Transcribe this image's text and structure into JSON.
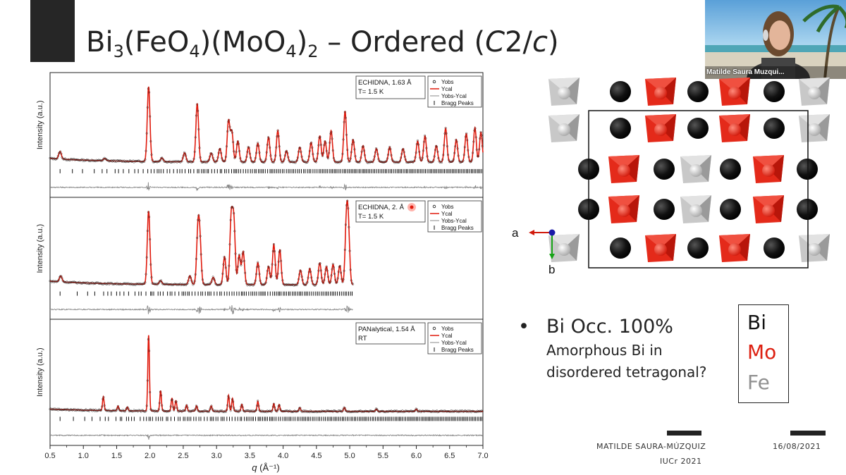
{
  "slide": {
    "title": {
      "prefix": "Bi",
      "sub1": "3",
      "mid1": "(FeO",
      "sub2": "4",
      "mid2": ")(MoO",
      "sub3": "4",
      "mid3": ")",
      "sub4": "2",
      "suffix": " – Ordered (",
      "italic_c": "C",
      "mid4": "2/",
      "italic_c2": "c",
      "end": ")"
    },
    "bullet": {
      "main": "Bi Occ. 100%",
      "sub_line1": "Amorphous Bi in",
      "sub_line2": "disordered tetragonal?"
    },
    "element_legend": [
      {
        "label": "Bi",
        "color": "#111111"
      },
      {
        "label": "Mo",
        "color": "#dd2011"
      },
      {
        "label": "Fe",
        "color": "#909090"
      }
    ],
    "footer": {
      "author": "MATILDE SAURA-MÚZQUIZ",
      "conference": "IUCr 2021",
      "date": "16/08/2021"
    },
    "axes_labels": {
      "a": "a",
      "b": "b"
    }
  },
  "video": {
    "participant_name": "Matilde Saura Muzqui..."
  },
  "chart_data": {
    "type": "line",
    "xlabel": "q (Å⁻¹)",
    "xlabel_q": "q",
    "xlabel_unit": "(Å⁻¹)",
    "xlim": [
      0.5,
      7.0
    ],
    "x_ticks": [
      "0.5",
      "1.0",
      "1.5",
      "2.0",
      "2.5",
      "3.0",
      "3.5",
      "4.0",
      "4.5",
      "5.0",
      "5.5",
      "6.0",
      "6.5",
      "7.0"
    ],
    "panels": [
      {
        "ylabel": "Intensity (a.u.)",
        "info_line1": "ECHIDNA, 1.63 Å",
        "info_line2": "T= 1.5 K",
        "legend": [
          "Yobs",
          "Ycal",
          "Yobs-Ycal",
          "Bragg Peaks"
        ],
        "q_max": 7.0,
        "peaks": [
          [
            0.65,
            0.1
          ],
          [
            1.32,
            0.03
          ],
          [
            1.98,
            1.0
          ],
          [
            2.18,
            0.05
          ],
          [
            2.52,
            0.12
          ],
          [
            2.71,
            0.78
          ],
          [
            2.92,
            0.12
          ],
          [
            3.05,
            0.18
          ],
          [
            3.18,
            0.55
          ],
          [
            3.23,
            0.4
          ],
          [
            3.32,
            0.28
          ],
          [
            3.48,
            0.2
          ],
          [
            3.62,
            0.25
          ],
          [
            3.78,
            0.33
          ],
          [
            3.92,
            0.42
          ],
          [
            4.05,
            0.15
          ],
          [
            4.25,
            0.2
          ],
          [
            4.42,
            0.26
          ],
          [
            4.55,
            0.35
          ],
          [
            4.63,
            0.28
          ],
          [
            4.72,
            0.42
          ],
          [
            4.93,
            0.68
          ],
          [
            5.05,
            0.3
          ],
          [
            5.2,
            0.22
          ],
          [
            5.4,
            0.18
          ],
          [
            5.6,
            0.2
          ],
          [
            5.8,
            0.18
          ],
          [
            6.02,
            0.28
          ],
          [
            6.13,
            0.35
          ],
          [
            6.3,
            0.22
          ],
          [
            6.44,
            0.45
          ],
          [
            6.6,
            0.3
          ],
          [
            6.75,
            0.38
          ],
          [
            6.88,
            0.46
          ],
          [
            6.97,
            0.4
          ]
        ]
      },
      {
        "ylabel": "Intensity (a.u.)",
        "info_line1": "ECHIDNA, 2.",
        "info_line1_end": "Å",
        "info_line2": "T= 1.5 K",
        "legend": [
          "Yobs",
          "Ycal",
          "Yobs-Ycal",
          "Bragg Peaks"
        ],
        "q_max": 5.05,
        "peaks": [
          [
            0.66,
            0.08
          ],
          [
            1.98,
            1.0
          ],
          [
            2.16,
            0.05
          ],
          [
            2.6,
            0.12
          ],
          [
            2.72,
            0.7
          ],
          [
            2.75,
            0.55
          ],
          [
            2.95,
            0.1
          ],
          [
            3.12,
            0.38
          ],
          [
            3.22,
            0.9
          ],
          [
            3.26,
            0.85
          ],
          [
            3.34,
            0.4
          ],
          [
            3.4,
            0.45
          ],
          [
            3.62,
            0.3
          ],
          [
            3.78,
            0.25
          ],
          [
            3.86,
            0.55
          ],
          [
            3.95,
            0.48
          ],
          [
            4.26,
            0.2
          ],
          [
            4.4,
            0.22
          ],
          [
            4.55,
            0.3
          ],
          [
            4.65,
            0.25
          ],
          [
            4.75,
            0.28
          ],
          [
            4.85,
            0.26
          ],
          [
            4.95,
            0.82
          ],
          [
            4.98,
            0.7
          ]
        ]
      },
      {
        "ylabel": "Intensity (a.u.)",
        "info_line1": "PANalytical, 1.54 Å",
        "info_line2": "RT",
        "legend": [
          "Yobs",
          "Ycal",
          "Yobs-Ycal",
          "Bragg Peaks"
        ],
        "q_max": 7.0,
        "peaks": [
          [
            1.3,
            0.18
          ],
          [
            1.52,
            0.06
          ],
          [
            1.66,
            0.05
          ],
          [
            1.98,
            1.0
          ],
          [
            2.16,
            0.27
          ],
          [
            2.33,
            0.17
          ],
          [
            2.39,
            0.14
          ],
          [
            2.55,
            0.08
          ],
          [
            2.7,
            0.07
          ],
          [
            2.92,
            0.07
          ],
          [
            3.18,
            0.21
          ],
          [
            3.24,
            0.17
          ],
          [
            3.38,
            0.09
          ],
          [
            3.62,
            0.13
          ],
          [
            3.86,
            0.1
          ],
          [
            3.94,
            0.09
          ],
          [
            4.25,
            0.05
          ],
          [
            4.92,
            0.05
          ],
          [
            5.4,
            0.03
          ],
          [
            6.0,
            0.03
          ]
        ]
      }
    ]
  }
}
